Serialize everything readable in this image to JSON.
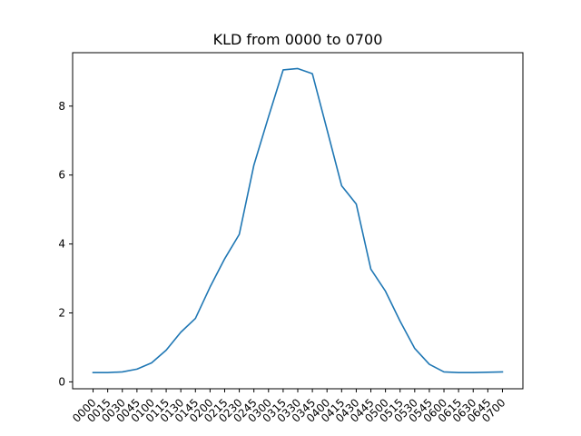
{
  "chart_data": {
    "type": "line",
    "title": "KLD from 0000 to 0700",
    "xlabel": "",
    "ylabel": "",
    "categories": [
      "0000",
      "0015",
      "0030",
      "0045",
      "0100",
      "0115",
      "0130",
      "0145",
      "0200",
      "0215",
      "0230",
      "0245",
      "0300",
      "0315",
      "0330",
      "0345",
      "0400",
      "0415",
      "0430",
      "0445",
      "0500",
      "0515",
      "0530",
      "0545",
      "0600",
      "0615",
      "0630",
      "0645",
      "0700"
    ],
    "yticks": [
      0,
      2,
      4,
      6,
      8
    ],
    "ylim": [
      -0.2,
      9.55
    ],
    "grid": false,
    "series": [
      {
        "values": [
          0.27,
          0.27,
          0.29,
          0.37,
          0.55,
          0.92,
          1.44,
          1.84,
          2.75,
          3.57,
          4.28,
          6.29,
          7.69,
          9.05,
          9.09,
          8.94,
          7.32,
          5.69,
          5.16,
          3.27,
          2.63,
          1.76,
          0.97,
          0.51,
          0.29,
          0.27,
          0.27,
          0.28,
          0.29
        ],
        "color": "#1f77b4"
      }
    ]
  }
}
